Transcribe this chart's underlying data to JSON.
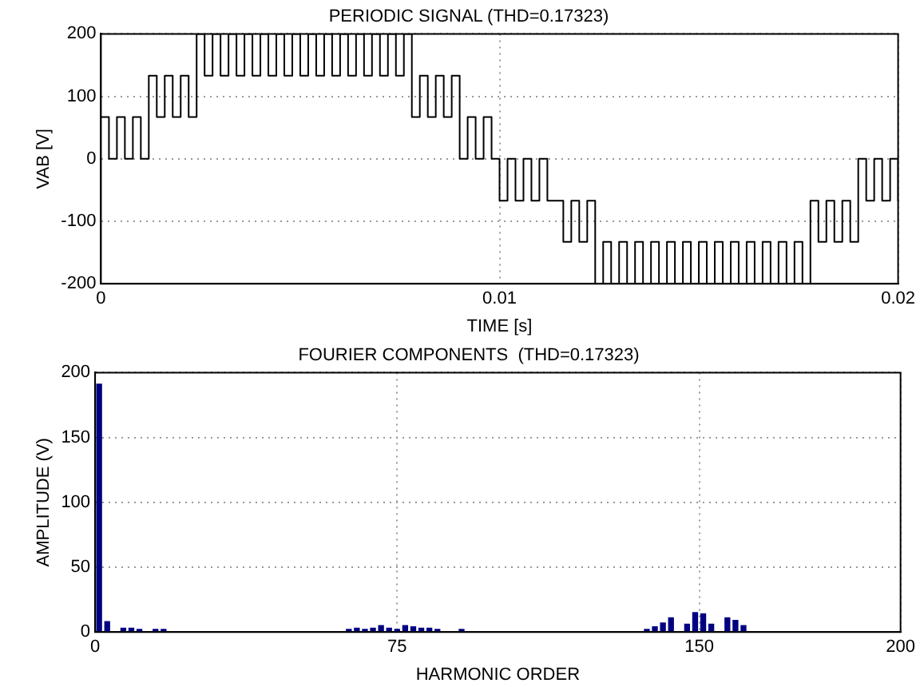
{
  "chart_data": [
    {
      "type": "step",
      "title": "PERIODIC SIGNAL (THD=0.17323)",
      "xlabel": "TIME [s]",
      "ylabel": "VAB [V]",
      "x": [
        0,
        0.0002,
        0.0004,
        0.0006,
        0.0008,
        0.001,
        0.0012,
        0.0014,
        0.0016,
        0.0018,
        0.002,
        0.0022,
        0.0024,
        0.0026,
        0.0028,
        0.003,
        0.0032,
        0.0034,
        0.0036,
        0.0038,
        0.004,
        0.0042,
        0.0044,
        0.0046,
        0.0048,
        0.005,
        0.0052,
        0.0054,
        0.0056,
        0.0058,
        0.006,
        0.0062,
        0.0064,
        0.0066,
        0.0068,
        0.007,
        0.0072,
        0.0074,
        0.0076,
        0.0078,
        0.008,
        0.0082,
        0.0084,
        0.0086,
        0.0088,
        0.009,
        0.0092,
        0.0094,
        0.0096,
        0.0098,
        0.01,
        0.0102,
        0.0104,
        0.0106,
        0.0108,
        0.011,
        0.0112,
        0.0114,
        0.0116,
        0.0118,
        0.012,
        0.0122,
        0.0124,
        0.0126,
        0.0128,
        0.013,
        0.0132,
        0.0134,
        0.0136,
        0.0138,
        0.014,
        0.0142,
        0.0144,
        0.0146,
        0.0148,
        0.015,
        0.0152,
        0.0154,
        0.0156,
        0.0158,
        0.016,
        0.0162,
        0.0164,
        0.0166,
        0.0168,
        0.017,
        0.0172,
        0.0174,
        0.0176,
        0.0178,
        0.018,
        0.0182,
        0.0184,
        0.0186,
        0.0188,
        0.019,
        0.0192,
        0.0194,
        0.0196,
        0.0198,
        0.02
      ],
      "values": [
        67,
        0,
        67,
        0,
        67,
        0,
        133,
        67,
        133,
        67,
        133,
        67,
        200,
        133,
        200,
        133,
        200,
        133,
        200,
        133,
        200,
        133,
        200,
        133,
        200,
        133,
        200,
        133,
        200,
        133,
        200,
        133,
        200,
        133,
        200,
        133,
        200,
        133,
        200,
        67,
        133,
        67,
        133,
        67,
        133,
        0,
        67,
        0,
        67,
        0,
        -67,
        0,
        -67,
        0,
        -67,
        0,
        -67,
        -67,
        -133,
        -67,
        -133,
        -67,
        -200,
        -133,
        -200,
        -133,
        -200,
        -133,
        -200,
        -133,
        -200,
        -133,
        -200,
        -133,
        -200,
        -133,
        -200,
        -133,
        -200,
        -133,
        -200,
        -133,
        -200,
        -133,
        -200,
        -133,
        -200,
        -133,
        -200,
        -67,
        -133,
        -67,
        -133,
        -67,
        -133,
        0,
        -67,
        0,
        -67,
        0,
        -67
      ],
      "color": "#000000",
      "xlim": [
        0,
        0.02
      ],
      "xticks": [
        0,
        0.01,
        0.02
      ],
      "ylim": [
        -200,
        200
      ],
      "yticks": [
        -200,
        -100,
        0,
        100,
        200
      ],
      "grid": true
    },
    {
      "type": "bar",
      "title": "FOURIER COMPONENTS  (THD=0.17323)",
      "xlabel": "HARMONIC ORDER",
      "ylabel": "AMPLITUDE (V)",
      "x": [
        1,
        3,
        7,
        9,
        11,
        15,
        17,
        63,
        65,
        67,
        69,
        71,
        73,
        75,
        77,
        79,
        81,
        83,
        85,
        91,
        137,
        139,
        141,
        143,
        147,
        149,
        151,
        153,
        157,
        159,
        161
      ],
      "values": [
        191,
        8,
        3,
        3,
        2,
        2,
        2,
        2,
        3,
        2,
        3,
        5,
        3,
        2,
        5,
        4,
        3,
        3,
        2,
        2,
        2,
        4,
        7,
        11,
        6,
        15,
        14,
        6,
        11,
        9,
        5
      ],
      "color": "#000080",
      "xlim": [
        0,
        200
      ],
      "xticks": [
        0,
        75,
        150,
        200
      ],
      "ylim": [
        0,
        200
      ],
      "yticks": [
        0,
        50,
        100,
        150,
        200
      ],
      "grid": true
    }
  ]
}
